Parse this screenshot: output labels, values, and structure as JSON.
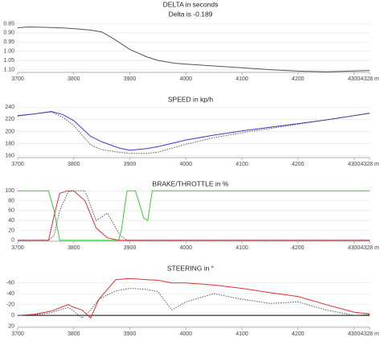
{
  "chart_data": [
    {
      "type": "line",
      "title": "DELTA in seconds",
      "subtitle": "Delta is -0.189",
      "inverted": true,
      "grid": true,
      "xlim": [
        3700,
        4328
      ],
      "xticks": [
        3700,
        3800,
        3900,
        4000,
        4100,
        4200,
        4300,
        {
          "value": 4328,
          "label": "4328 m"
        }
      ],
      "ylim": [
        0.835,
        1.115
      ],
      "yticks": [
        0.85,
        {
          "value": 0.9,
          "label": "0.90"
        },
        0.95,
        {
          "value": 1,
          "label": "1.00"
        },
        1.05,
        {
          "value": 1.1,
          "label": "1.10"
        }
      ],
      "x": [
        3700,
        3720,
        3750,
        3780,
        3800,
        3830,
        3850,
        3870,
        3900,
        3930,
        3950,
        3980,
        4000,
        4050,
        4100,
        4150,
        4200,
        4250,
        4300,
        4328
      ],
      "series": [
        {
          "color": "#555555",
          "values": [
            0.872,
            0.868,
            0.87,
            0.873,
            0.877,
            0.885,
            0.895,
            0.93,
            0.99,
            1.03,
            1.05,
            1.065,
            1.07,
            1.08,
            1.09,
            1.1,
            1.108,
            1.112,
            1.107,
            1.105
          ]
        }
      ]
    },
    {
      "type": "line",
      "title": "SPEED in kp/h",
      "grid": true,
      "xlim": [
        3700,
        4328
      ],
      "xticks": [
        3700,
        3800,
        3900,
        4000,
        4100,
        4200,
        4300,
        {
          "value": 4328,
          "label": "4328 m"
        }
      ],
      "ylim": [
        157,
        243
      ],
      "yticks": [
        160,
        180,
        200,
        220,
        240
      ],
      "x": [
        3700,
        3730,
        3760,
        3780,
        3800,
        3830,
        3850,
        3880,
        3900,
        3930,
        3950,
        4000,
        4050,
        4100,
        4150,
        4200,
        4250,
        4300,
        4328
      ],
      "series": [
        {
          "color": "#3a3ad0",
          "values": [
            226,
            229,
            233,
            228,
            218,
            192,
            183,
            173,
            169,
            172,
            175,
            186,
            194,
            201,
            207,
            213,
            219,
            226,
            230
          ]
        },
        {
          "color": "#555555",
          "dash": true,
          "values": [
            225,
            229,
            232,
            224,
            210,
            178,
            170,
            166,
            164,
            164,
            166,
            179,
            190,
            198,
            205,
            212,
            219,
            226,
            230
          ]
        }
      ]
    },
    {
      "type": "line",
      "title": "BRAKE/THROTTLE in %",
      "grid": true,
      "xlim": [
        3700,
        4328
      ],
      "xticks": [
        3700,
        3800,
        3900,
        4000,
        4100,
        4200,
        4300,
        {
          "value": 4328,
          "label": "4328 m"
        }
      ],
      "ylim": [
        -2,
        102
      ],
      "yticks": [
        0,
        20,
        40,
        60,
        80,
        100
      ],
      "x": [
        3700,
        3755,
        3765,
        3775,
        3790,
        3800,
        3820,
        3840,
        3860,
        3880,
        3885,
        3895,
        3910,
        3925,
        3932,
        3940,
        3950,
        4000,
        4328
      ],
      "series": [
        {
          "color": "#33cc33",
          "values": [
            100,
            100,
            60,
            0,
            0,
            0,
            0,
            0,
            0,
            0,
            20,
            100,
            100,
            45,
            40,
            100,
            100,
            100,
            100
          ]
        },
        {
          "color": "#e03030",
          "values": [
            0,
            0,
            50,
            95,
            100,
            100,
            80,
            25,
            5,
            0,
            0,
            0,
            0,
            0,
            0,
            0,
            0,
            0,
            0
          ]
        },
        {
          "color": "#555555",
          "dash": true,
          "values": [
            0,
            0,
            10,
            60,
            98,
            100,
            100,
            40,
            55,
            15,
            8,
            0,
            0,
            0,
            0,
            0,
            0,
            0,
            0
          ]
        }
      ]
    },
    {
      "type": "line",
      "title": "STEERING in °",
      "inverted": true,
      "grid": true,
      "zero_line": true,
      "xlim": [
        3700,
        4328
      ],
      "xticks": [
        3700,
        3800,
        3900,
        4000,
        4100,
        4200,
        4300,
        {
          "value": 4328,
          "label": "4328 m"
        }
      ],
      "ylim": [
        -70,
        22
      ],
      "yticks": [
        -60,
        -40,
        -20,
        0,
        20
      ],
      "x": [
        3700,
        3730,
        3760,
        3790,
        3800,
        3815,
        3830,
        3845,
        3860,
        3875,
        3900,
        3930,
        3950,
        3975,
        4000,
        4050,
        4100,
        4150,
        4200,
        4250,
        4300,
        4328
      ],
      "series": [
        {
          "color": "#e03030",
          "values": [
            0,
            -2,
            -8,
            -20,
            -15,
            -10,
            5,
            -30,
            -48,
            -66,
            -68,
            -66,
            -65,
            -60,
            -60,
            -56,
            -50,
            -42,
            -35,
            -20,
            -6,
            -3
          ]
        },
        {
          "color": "#555555",
          "dash": true,
          "values": [
            0,
            -1,
            -5,
            -15,
            -8,
            5,
            -10,
            -30,
            -38,
            -45,
            -50,
            -48,
            -44,
            -10,
            -25,
            -40,
            -30,
            -22,
            -25,
            -10,
            0,
            -2
          ]
        }
      ]
    }
  ]
}
